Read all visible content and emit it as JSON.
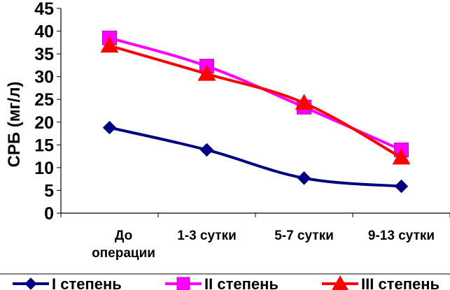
{
  "chart_data": {
    "type": "line",
    "categories": [
      [
        "До",
        "операции"
      ],
      [
        "1-3 сутки"
      ],
      [
        "5-7 сутки"
      ],
      [
        "9-13 сутки"
      ]
    ],
    "ylabel": "СРБ (мг/л)",
    "xlabel": "",
    "title": "",
    "ylim": [
      0,
      45
    ],
    "yticks": [
      0,
      5,
      10,
      15,
      20,
      25,
      30,
      35,
      40,
      45
    ],
    "grid": false,
    "legend_position": "bottom",
    "series": [
      {
        "name": "I степень",
        "values": [
          18.8,
          13.9,
          7.7,
          5.9
        ],
        "color": "#000080",
        "marker": "diamond"
      },
      {
        "name": "II степень",
        "values": [
          38.5,
          32.3,
          23.3,
          13.9
        ],
        "color": "#FF00FF",
        "marker": "square"
      },
      {
        "name": "III степень",
        "values": [
          36.8,
          30.6,
          24.2,
          12.2
        ],
        "color": "#FF0000",
        "marker": "triangle"
      }
    ]
  }
}
